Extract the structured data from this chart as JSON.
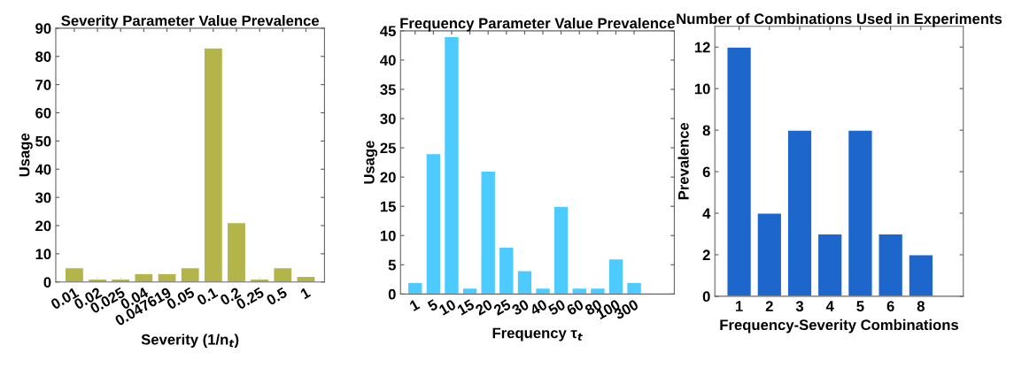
{
  "chart_data": [
    {
      "type": "bar",
      "title": "Severity Parameter Value Prevalence",
      "xlabel": "Severity (1/n$_{t}$)",
      "ylabel": "Usage",
      "categories": [
        "0.01",
        "0.02",
        "0.025",
        "0.04",
        "0.047619",
        "0.05",
        "0.1",
        "0.2",
        "0.25",
        "0.5",
        "1"
      ],
      "values": [
        5,
        1,
        1,
        3,
        3,
        5,
        83,
        21,
        1,
        5,
        2
      ],
      "color": "#b3b44a",
      "ylim": [
        0,
        90
      ],
      "yticks": [
        0,
        10,
        20,
        30,
        40,
        50,
        60,
        70,
        80,
        90
      ],
      "grid": false,
      "legend": false
    },
    {
      "type": "bar",
      "title": "Frequency Parameter Value Prevalence",
      "xlabel": "Frequency τ$_{t}$",
      "ylabel": "Usage",
      "categories": [
        "1",
        "5",
        "10",
        "15",
        "20",
        "25",
        "30",
        "40",
        "50",
        "60",
        "80",
        "100",
        "300"
      ],
      "values": [
        2,
        24,
        44,
        1,
        21,
        8,
        4,
        1,
        15,
        1,
        1,
        6,
        2
      ],
      "color": "#4dcbff",
      "ylim": [
        0,
        45
      ],
      "yticks": [
        0,
        5,
        10,
        15,
        20,
        25,
        30,
        35,
        40,
        45
      ],
      "grid": false,
      "legend": false
    },
    {
      "type": "bar",
      "title": "Number of Combinations Used in Experiments",
      "xlabel": "Frequency-Severity Combinations",
      "ylabel": "Prevalence",
      "categories": [
        "1",
        "2",
        "3",
        "4",
        "5",
        "6",
        "8"
      ],
      "values": [
        12,
        4,
        8,
        3,
        8,
        3,
        2
      ],
      "color": "#1d66cc",
      "ylim": [
        0,
        13
      ],
      "yticks": [
        0,
        2,
        4,
        6,
        8,
        10,
        12
      ],
      "grid": false,
      "legend": false
    }
  ]
}
